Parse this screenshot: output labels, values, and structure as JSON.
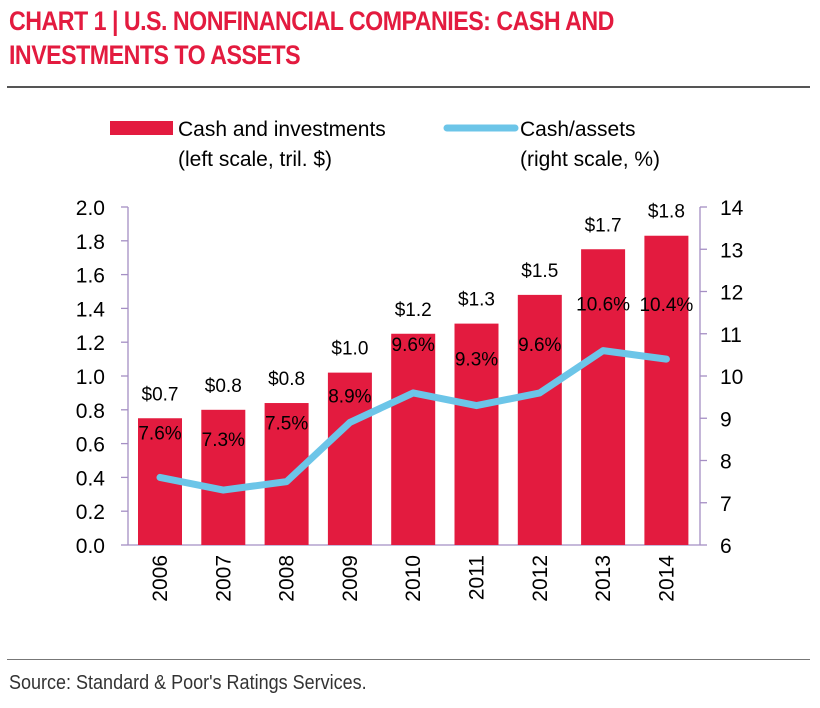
{
  "header": {
    "title_line1": "CHART 1 | U.S. NONFINANCIAL COMPANIES: CASH AND",
    "title_line2": "INVESTMENTS TO ASSETS"
  },
  "footer": {
    "source": "Source: Standard & Poor's Ratings Services."
  },
  "colors": {
    "title": "#e31b3f",
    "bar": "#e31b3f",
    "line": "#6cc5e8",
    "axis": "#a58fc4"
  },
  "chart_data": {
    "type": "bar",
    "title": "CHART 1 | U.S. NONFINANCIAL COMPANIES: CASH AND INVESTMENTS TO ASSETS",
    "categories": [
      "2006",
      "2007",
      "2008",
      "2009",
      "2010",
      "2011",
      "2012",
      "2013",
      "2014"
    ],
    "series": [
      {
        "name": "Cash and investments",
        "legend_line1": "Cash and investments",
        "legend_line2": "(left scale, tril. $)",
        "type": "bar",
        "axis": "left",
        "values": [
          0.75,
          0.8,
          0.84,
          1.02,
          1.25,
          1.31,
          1.48,
          1.75,
          1.83
        ],
        "labels": [
          "$0.7",
          "$0.8",
          "$0.8",
          "$1.0",
          "$1.2",
          "$1.3",
          "$1.5",
          "$1.7",
          "$1.8"
        ]
      },
      {
        "name": "Cash/assets",
        "legend_line1": "Cash/assets",
        "legend_line2": "(right scale, %)",
        "type": "line",
        "axis": "right",
        "values": [
          7.6,
          7.3,
          7.5,
          8.9,
          9.6,
          9.3,
          9.6,
          10.6,
          10.4
        ],
        "labels": [
          "7.6%",
          "7.3%",
          "7.5%",
          "8.9%",
          "9.6%",
          "9.3%",
          "9.6%",
          "10.6%",
          "10.4%"
        ]
      }
    ],
    "left_axis": {
      "ylim": [
        0,
        2.0
      ],
      "ticks": [
        "0.0",
        "0.2",
        "0.4",
        "0.6",
        "0.8",
        "1.0",
        "1.2",
        "1.4",
        "1.6",
        "1.8",
        "2.0"
      ]
    },
    "right_axis": {
      "ylim": [
        6,
        14
      ],
      "ticks": [
        "6",
        "7",
        "8",
        "9",
        "10",
        "11",
        "12",
        "13",
        "14"
      ]
    },
    "xlabel": "",
    "ylabel": "",
    "legend_position": "top",
    "grid": false
  }
}
